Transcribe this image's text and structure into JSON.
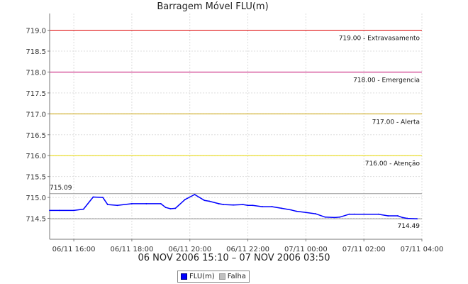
{
  "chart_data": {
    "type": "line",
    "title": "Barragem Móvel FLU(m)",
    "subtitle": "06 NOV 2006 15:10 – 07 NOV 2006 03:50",
    "xlabel": "",
    "ylabel": "",
    "ylim": [
      714.0,
      719.4
    ],
    "yticks": [
      "719.0",
      "718.5",
      "718.0",
      "717.5",
      "717.0",
      "716.5",
      "716.0",
      "715.5",
      "715.0",
      "714.5"
    ],
    "xlim": [
      "2006-11-06 15:10",
      "2006-11-07 04:00"
    ],
    "xticks": [
      "06/11 16:00",
      "06/11 18:00",
      "06/11 20:00",
      "06/11 22:00",
      "07/11 00:00",
      "07/11 02:00",
      "07/11 04:00"
    ],
    "grid": true,
    "legend_position": "bottom",
    "series": [
      {
        "name": "FLU(m)",
        "color": "#0000ff",
        "x": [
          "2006-11-06 15:10",
          "2006-11-06 15:30",
          "2006-11-06 16:00",
          "2006-11-06 16:20",
          "2006-11-06 16:40",
          "2006-11-06 17:00",
          "2006-11-06 17:10",
          "2006-11-06 17:30",
          "2006-11-06 18:00",
          "2006-11-06 18:30",
          "2006-11-06 19:00",
          "2006-11-06 19:10",
          "2006-11-06 19:20",
          "2006-11-06 19:30",
          "2006-11-06 19:50",
          "2006-11-06 20:10",
          "2006-11-06 20:30",
          "2006-11-06 20:40",
          "2006-11-06 21:00",
          "2006-11-06 21:10",
          "2006-11-06 21:30",
          "2006-11-06 21:50",
          "2006-11-06 22:00",
          "2006-11-06 22:10",
          "2006-11-06 22:30",
          "2006-11-06 22:50",
          "2006-11-06 23:10",
          "2006-11-06 23:30",
          "2006-11-06 23:40",
          "2006-11-07 00:00",
          "2006-11-07 00:20",
          "2006-11-07 00:40",
          "2006-11-07 01:00",
          "2006-11-07 01:10",
          "2006-11-07 01:30",
          "2006-11-07 01:40",
          "2006-11-07 02:00",
          "2006-11-07 02:30",
          "2006-11-07 02:50",
          "2006-11-07 03:10",
          "2006-11-07 03:20",
          "2006-11-07 03:30",
          "2006-11-07 03:50"
        ],
        "y": [
          714.69,
          714.69,
          714.69,
          714.72,
          715.01,
          715.0,
          714.83,
          714.81,
          714.85,
          714.85,
          714.85,
          714.76,
          714.73,
          714.74,
          714.95,
          715.07,
          714.93,
          714.91,
          714.85,
          714.83,
          714.82,
          714.83,
          714.81,
          714.81,
          714.78,
          714.78,
          714.74,
          714.7,
          714.67,
          714.64,
          714.61,
          714.53,
          714.52,
          714.53,
          714.6,
          714.6,
          714.6,
          714.6,
          714.56,
          714.56,
          714.52,
          714.5,
          714.49
        ]
      }
    ],
    "reference_lines": [
      {
        "value": 719.0,
        "label": "719.00 - Extravasamento",
        "color": "#dd0000"
      },
      {
        "value": 718.0,
        "label": "718.00 - Emergencia",
        "color": "#c0006a"
      },
      {
        "value": 717.0,
        "label": "717.00 - Alerta",
        "color": "#c8a000"
      },
      {
        "value": 716.0,
        "label": "716.00 - Atenção",
        "color": "#e8d800"
      },
      {
        "value": 715.09,
        "label": "715.09",
        "color": "#999999"
      },
      {
        "value": 714.49,
        "label": "714.49",
        "color": "#999999"
      }
    ],
    "legend": [
      {
        "label": "FLU(m)",
        "color": "#0000ff"
      },
      {
        "label": "Falha",
        "color": "#c0c0c0"
      }
    ]
  }
}
